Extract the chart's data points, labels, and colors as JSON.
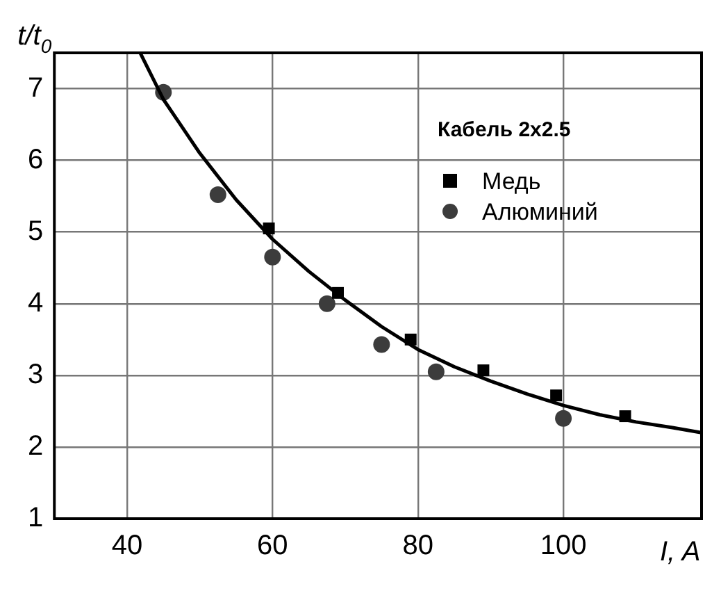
{
  "chart_data": {
    "type": "scatter",
    "xlabel": "I, A",
    "ylabel": "t/t$_{0}$",
    "legend_title": "Кабель 2x2.5",
    "xlim": [
      30,
      119
    ],
    "xticks": [
      40,
      60,
      80,
      100
    ],
    "ylim": [
      1,
      7.5
    ],
    "yticks": [
      1,
      2,
      3,
      4,
      5,
      6,
      7
    ],
    "grid": true,
    "legend": "top right",
    "series": [
      {
        "type": "line",
        "color": "#000000",
        "marker": "none",
        "x": [
          41.8,
          45,
          50,
          55,
          60,
          65,
          70,
          75,
          80,
          85,
          90,
          95,
          100,
          105,
          110,
          115,
          119
        ],
        "values": [
          7.5,
          6.85,
          6.1,
          5.45,
          4.9,
          4.45,
          4.05,
          3.68,
          3.36,
          3.12,
          2.92,
          2.74,
          2.58,
          2.45,
          2.35,
          2.27,
          2.2
        ]
      },
      {
        "name": "Медь",
        "color": "#000000",
        "marker": "square",
        "x": [
          59.5,
          69,
          79,
          89,
          99,
          108.5
        ],
        "values": [
          5.05,
          4.15,
          3.5,
          3.07,
          2.72,
          2.43
        ]
      },
      {
        "name": "Алюминий",
        "color": "#3c3c3c",
        "marker": "circle",
        "x": [
          45,
          52.5,
          60,
          67.5,
          75,
          82.5,
          100
        ],
        "values": [
          6.95,
          5.52,
          4.65,
          4.0,
          3.43,
          3.05,
          2.4
        ]
      }
    ]
  }
}
